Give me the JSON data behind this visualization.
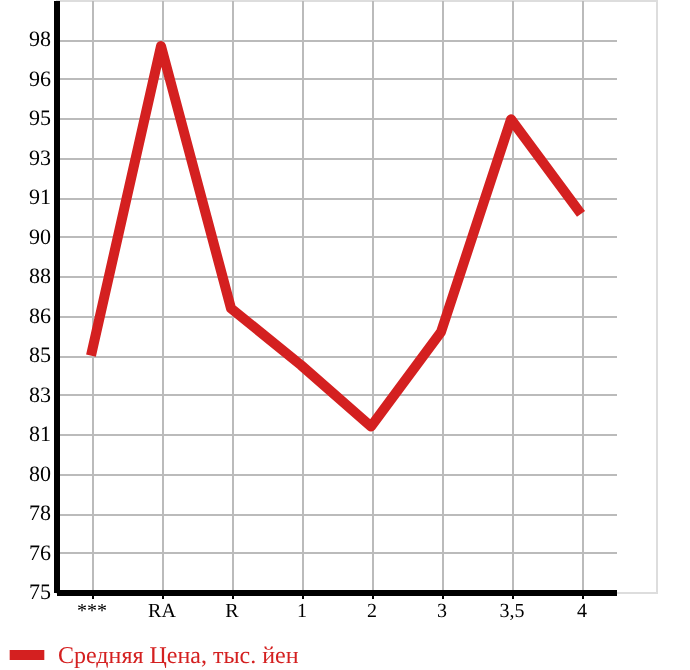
{
  "chart_data": {
    "type": "line",
    "categories": [
      "***",
      "RA",
      "R",
      "1",
      "2",
      "3",
      "3,5",
      "4"
    ],
    "series": [
      {
        "name": "Средняя Цена, тыс. йен",
        "color": "#d42020",
        "values": [
          84.6,
          97.7,
          86.6,
          84.2,
          81.6,
          85.6,
          94.6,
          90.6
        ]
      }
    ],
    "ylim": [
      74.6,
      99.65
    ],
    "yticks": [
      {
        "value": 74.6,
        "label": "75"
      },
      {
        "value": 76.27,
        "label": "76"
      },
      {
        "value": 77.94,
        "label": "78"
      },
      {
        "value": 79.61,
        "label": "80"
      },
      {
        "value": 81.28,
        "label": "81"
      },
      {
        "value": 82.95,
        "label": "83"
      },
      {
        "value": 84.62,
        "label": "85"
      },
      {
        "value": 86.29,
        "label": "86"
      },
      {
        "value": 87.96,
        "label": "88"
      },
      {
        "value": 89.63,
        "label": "90"
      },
      {
        "value": 91.3,
        "label": "91"
      },
      {
        "value": 92.97,
        "label": "93"
      },
      {
        "value": 94.64,
        "label": "95"
      },
      {
        "value": 96.31,
        "label": "96"
      },
      {
        "value": 97.98,
        "label": "98"
      }
    ],
    "grid": true,
    "legend": "bottom left",
    "marker": "none",
    "line_style": "solid"
  }
}
